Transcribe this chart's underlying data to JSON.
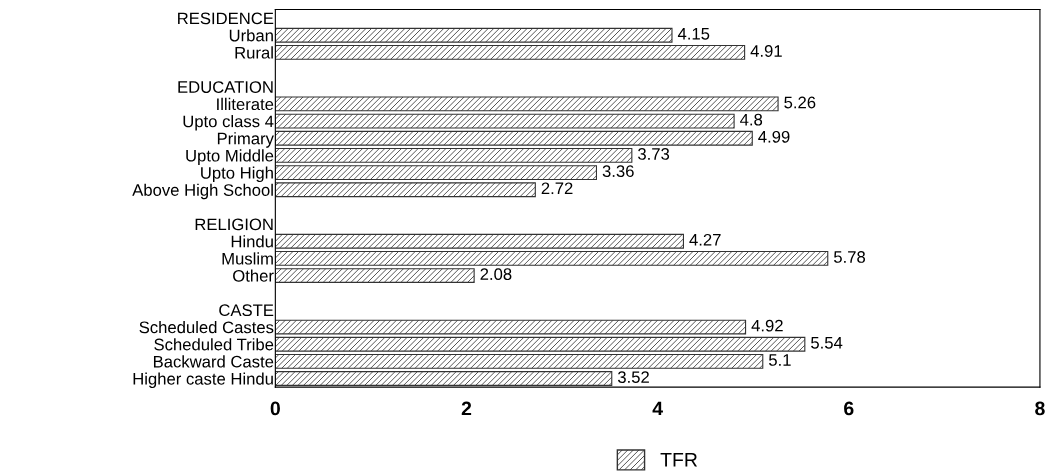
{
  "chart_data": {
    "type": "bar",
    "orientation": "horizontal",
    "categories": [
      "RESIDENCE",
      "Urban",
      "Rural",
      null,
      "EDUCATION",
      "Illiterate",
      "Upto class 4",
      "Primary",
      "Upto Middle",
      "Upto High",
      "Above High School",
      null,
      "RELIGION",
      "Hindu",
      "Muslim",
      "Other",
      null,
      "CASTE",
      "Scheduled Castes",
      "Scheduled Tribe",
      "Backward Caste",
      "Higher caste Hindu"
    ],
    "series": [
      {
        "name": "TFR",
        "color": "#333333",
        "values": [
          null,
          4.15,
          4.91,
          null,
          null,
          5.26,
          4.8,
          4.99,
          3.73,
          3.36,
          2.72,
          null,
          null,
          4.27,
          5.78,
          2.08,
          null,
          null,
          4.92,
          5.54,
          5.1,
          3.52
        ]
      }
    ],
    "xlim": [
      0,
      8
    ],
    "xticks": [
      0,
      2,
      4,
      6,
      8
    ],
    "data_labels": true,
    "legend": "bottom",
    "grid": false
  }
}
